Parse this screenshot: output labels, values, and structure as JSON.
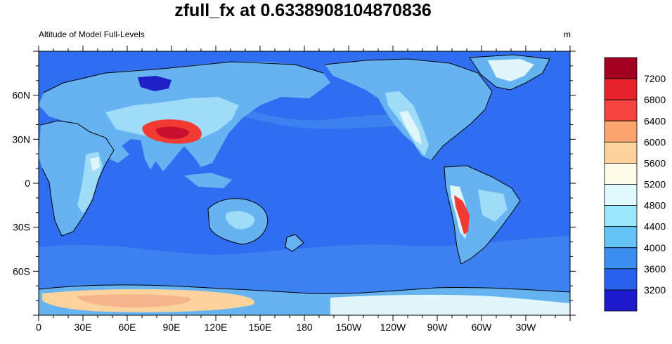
{
  "title": "zfull_fx at 0.6338908104870836",
  "subtitle_left": "Altitude of Model Full-Levels",
  "subtitle_right": "m",
  "x_tick_labels": [
    "0",
    "30E",
    "60E",
    "90E",
    "120E",
    "150E",
    "180",
    "150W",
    "120W",
    "90W",
    "60W",
    "30W"
  ],
  "y_tick_labels": [
    "60N",
    "30N",
    "0",
    "30S",
    "60S"
  ],
  "colorbar": {
    "labels": [
      "7200",
      "6800",
      "6400",
      "6000",
      "5600",
      "5200",
      "4800",
      "4400",
      "4000",
      "3600",
      "3200"
    ],
    "colors": [
      "#a50021",
      "#e8222b",
      "#f4443f",
      "#fca56e",
      "#fdd49e",
      "#fefce8",
      "#e1f9fd",
      "#9ce8fb",
      "#66c4f4",
      "#3a8ef0",
      "#2961ee",
      "#1b1bcd"
    ]
  },
  "palette": {
    "ocean": "#2f6ef0",
    "ocean_south": "#3b82f0",
    "land_low": "#66b3f2",
    "land_mid": "#9edcf8",
    "highland": "#e1f6fb",
    "plateau": "#f13a32",
    "plateau_core": "#c8102e",
    "antarctic": "#fdd49e",
    "antarctic_high": "#f5b48c",
    "depression": "#2020c8"
  }
}
